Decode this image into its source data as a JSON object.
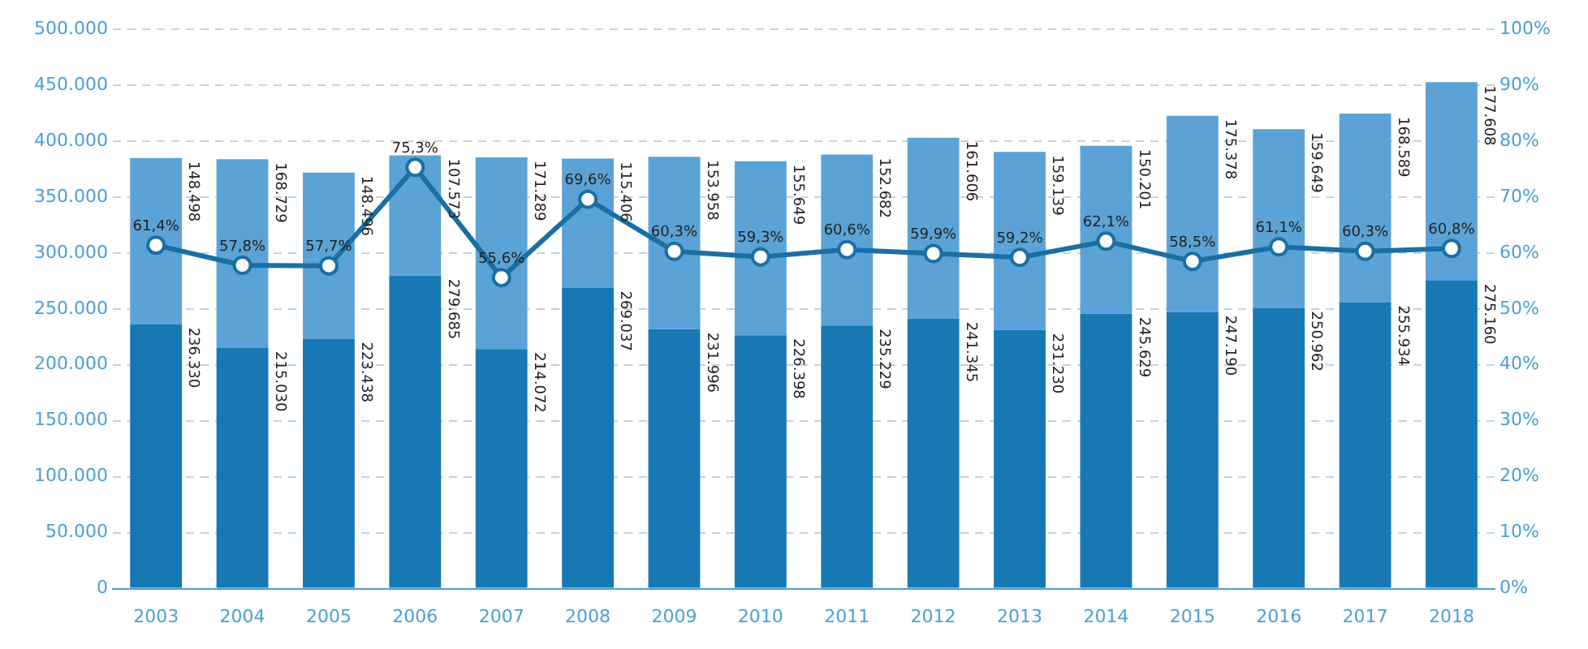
{
  "chart_data": {
    "type": "bar",
    "stacked": true,
    "categories": [
      "2003",
      "2004",
      "2005",
      "2006",
      "2007",
      "2008",
      "2009",
      "2010",
      "2011",
      "2012",
      "2013",
      "2014",
      "2015",
      "2016",
      "2017",
      "2018"
    ],
    "series": [
      {
        "color": "#1878b4",
        "values": [
          236330,
          215030,
          223438,
          279685,
          214072,
          269037,
          231996,
          226398,
          235229,
          241345,
          231230,
          245629,
          247190,
          250962,
          255934,
          275160
        ],
        "value_labels": [
          "236.330",
          "215.030",
          "223.438",
          "279.685",
          "214.072",
          "269.037",
          "231.996",
          "226.398",
          "235.229",
          "241.345",
          "231.230",
          "245.629",
          "247.190",
          "250.962",
          "255.934",
          "275.160"
        ]
      },
      {
        "color": "#5ba3d6",
        "values": [
          148498,
          168729,
          148496,
          107573,
          171289,
          115406,
          153958,
          155649,
          152682,
          161606,
          159139,
          150201,
          175378,
          159649,
          168589,
          177608
        ],
        "value_labels": [
          "148.498",
          "168.729",
          "148.496",
          "107.573",
          "171.289",
          "115.406",
          "153.958",
          "155.649",
          "152.682",
          "161.606",
          "159.139",
          "150.201",
          "175.378",
          "159.649",
          "168.589",
          "177.608"
        ]
      },
      {
        "type": "line",
        "axis": "y2",
        "color": "#1a6fa3",
        "values": [
          61.4,
          57.8,
          57.7,
          75.3,
          55.6,
          69.6,
          60.3,
          59.3,
          60.6,
          59.9,
          59.2,
          62.1,
          58.5,
          61.1,
          60.3,
          60.8
        ],
        "value_labels": [
          "61,4%",
          "57,8%",
          "57,7%",
          "75,3%",
          "55,6%",
          "69,6%",
          "60,3%",
          "59,3%",
          "60,6%",
          "59,9%",
          "59,2%",
          "62,1%",
          "58,5%",
          "61,1%",
          "60,3%",
          "60,8%"
        ]
      }
    ],
    "ylim": [
      0,
      500000
    ],
    "yticks": [
      {
        "value": 0,
        "label": "0"
      },
      {
        "value": 50000,
        "label": "50.000"
      },
      {
        "value": 100000,
        "label": "100.000"
      },
      {
        "value": 150000,
        "label": "150.000"
      },
      {
        "value": 200000,
        "label": "200.000"
      },
      {
        "value": 250000,
        "label": "250.000"
      },
      {
        "value": 300000,
        "label": "300.000"
      },
      {
        "value": 350000,
        "label": "350.000"
      },
      {
        "value": 400000,
        "label": "400.000"
      },
      {
        "value": 450000,
        "label": "450.000"
      },
      {
        "value": 500000,
        "label": "500.000"
      }
    ],
    "y2lim": [
      0,
      100
    ],
    "y2ticks": [
      {
        "value": 0,
        "label": "0%"
      },
      {
        "value": 10,
        "label": "10%"
      },
      {
        "value": 20,
        "label": "20%"
      },
      {
        "value": 30,
        "label": "30%"
      },
      {
        "value": 40,
        "label": "40%"
      },
      {
        "value": 50,
        "label": "50%"
      },
      {
        "value": 60,
        "label": "60%"
      },
      {
        "value": 70,
        "label": "70%"
      },
      {
        "value": 80,
        "label": "80%"
      },
      {
        "value": 90,
        "label": "90%"
      },
      {
        "value": 100,
        "label": "100%"
      }
    ],
    "grid": "y",
    "legend": false,
    "marker": "circle",
    "line_style": "solid"
  }
}
